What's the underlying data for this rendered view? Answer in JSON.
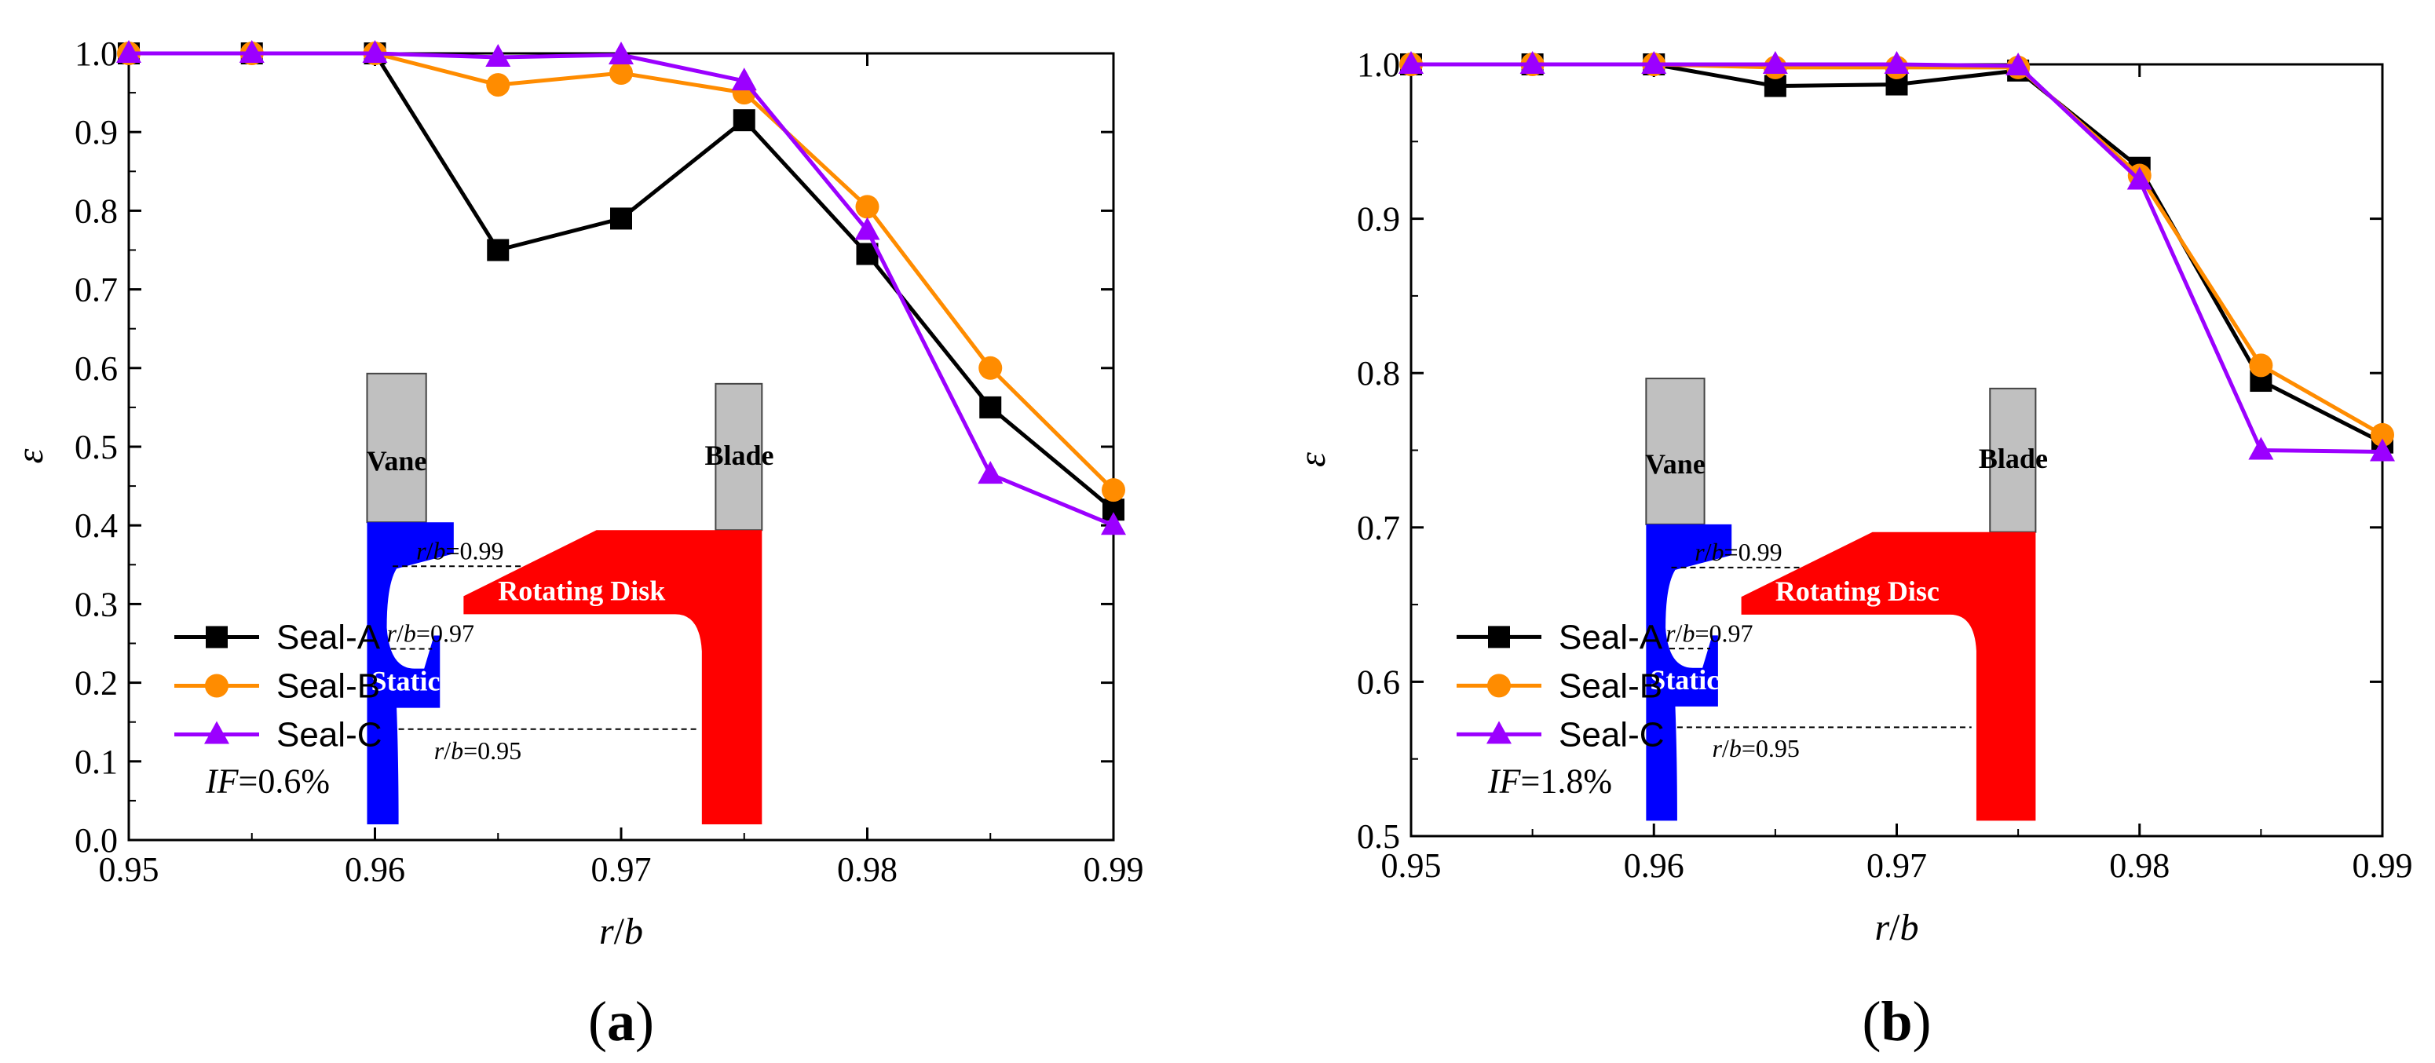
{
  "charts": [
    {
      "id": "a",
      "caption": "(a)",
      "chart_data": {
        "type": "line",
        "title": "",
        "xlabel": "r/b",
        "ylabel": "ε",
        "x": [
          0.95,
          0.955,
          0.96,
          0.965,
          0.97,
          0.975,
          0.98,
          0.985,
          0.99
        ],
        "xlim": [
          0.95,
          0.99
        ],
        "ylim": [
          0.0,
          1.0
        ],
        "xticks": [
          "0.95",
          "0.96",
          "0.97",
          "0.98",
          "0.99"
        ],
        "yticks": [
          "0.0",
          "0.1",
          "0.2",
          "0.3",
          "0.4",
          "0.5",
          "0.6",
          "0.7",
          "0.8",
          "0.9",
          "1.0"
        ],
        "series": [
          {
            "name": "Seal-A",
            "color": "#000000",
            "marker": "square",
            "values": [
              1.0,
              1.0,
              1.0,
              0.75,
              0.79,
              0.915,
              0.745,
              0.55,
              0.42
            ]
          },
          {
            "name": "Seal-B",
            "color": "#FF8C00",
            "marker": "circle",
            "values": [
              1.0,
              1.0,
              1.0,
              0.96,
              0.975,
              0.95,
              0.805,
              0.6,
              0.445
            ]
          },
          {
            "name": "Seal-C",
            "color": "#9B00FF",
            "marker": "triangle",
            "values": [
              1.0,
              1.0,
              1.0,
              0.995,
              0.998,
              0.965,
              0.775,
              0.465,
              0.4
            ]
          }
        ],
        "legend_position": "bottom-left",
        "annotation": {
          "italic": "IF",
          "rest": "=0.6%"
        }
      },
      "inset": {
        "vane": "Vane",
        "blade": "Blade",
        "rotor": "Rotating Disk",
        "stator": "Static Disk",
        "lines": [
          "r/b=0.99",
          "r/b=0.97",
          "r/b=0.95"
        ]
      }
    },
    {
      "id": "b",
      "caption": "(b)",
      "chart_data": {
        "type": "line",
        "title": "",
        "xlabel": "r/b",
        "ylabel": "ε",
        "x": [
          0.95,
          0.955,
          0.96,
          0.965,
          0.97,
          0.975,
          0.98,
          0.985,
          0.99
        ],
        "xlim": [
          0.95,
          0.99
        ],
        "ylim": [
          0.5,
          1.0
        ],
        "xticks": [
          "0.95",
          "0.96",
          "0.97",
          "0.98",
          "0.99"
        ],
        "yticks": [
          "0.5",
          "0.6",
          "0.7",
          "0.8",
          "0.9",
          "1.0"
        ],
        "series": [
          {
            "name": "Seal-A",
            "color": "#000000",
            "marker": "square",
            "values": [
              1.0,
              1.0,
              1.0,
              0.986,
              0.987,
              0.996,
              0.933,
              0.795,
              0.755
            ]
          },
          {
            "name": "Seal-B",
            "color": "#FF8C00",
            "marker": "circle",
            "values": [
              1.0,
              1.0,
              1.0,
              0.998,
              0.998,
              0.998,
              0.928,
              0.805,
              0.76
            ]
          },
          {
            "name": "Seal-C",
            "color": "#9B00FF",
            "marker": "triangle",
            "values": [
              1.0,
              1.0,
              1.0,
              1.0,
              1.0,
              0.999,
              0.925,
              0.75,
              0.749
            ]
          }
        ],
        "legend_position": "bottom-left",
        "annotation": {
          "italic": "IF",
          "rest": "=1.8%"
        }
      },
      "inset": {
        "vane": "Vane",
        "blade": "Blade",
        "rotor": "Rotating Disc",
        "stator": "Static Disc",
        "lines": [
          "r/b=0.99",
          "r/b=0.97",
          "r/b=0.95"
        ]
      }
    }
  ]
}
